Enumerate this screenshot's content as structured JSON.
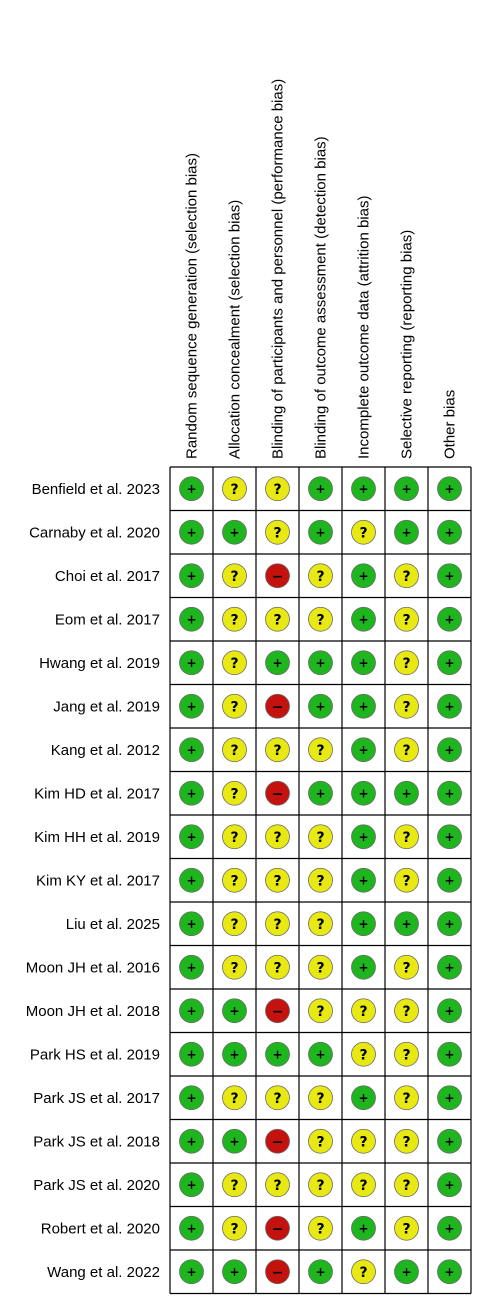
{
  "chart_data": {
    "type": "table",
    "columns": [
      "Random sequence generation (selection bias)",
      "Allocation concealment (selection bias)",
      "Blinding of participants and personnel (performance bias)",
      "Blinding of outcome assessment (detection bias)",
      "Incomplete outcome data (attrition bias)",
      "Selective reporting (reporting bias)",
      "Other bias"
    ],
    "rows": [
      "Benfield et al. 2023",
      "Carnaby et al. 2020",
      "Choi et al. 2017",
      "Eom et al. 2017",
      "Hwang et al. 2019",
      "Jang et al. 2019",
      "Kang et al. 2012",
      "Kim HD et al. 2017",
      "Kim HH et al. 2019",
      "Kim KY et al. 2017",
      "Liu et al. 2025",
      "Moon JH et al. 2016",
      "Moon JH et al. 2018",
      "Park HS et al. 2019",
      "Park JS et al. 2017",
      "Park JS et al. 2018",
      "Park JS et al. 2020",
      "Robert et al. 2020",
      "Wang et al. 2022"
    ],
    "judgements": [
      [
        "low",
        "unclear",
        "unclear",
        "low",
        "low",
        "low",
        "low"
      ],
      [
        "low",
        "low",
        "unclear",
        "low",
        "unclear",
        "low",
        "low"
      ],
      [
        "low",
        "unclear",
        "high",
        "unclear",
        "low",
        "unclear",
        "low"
      ],
      [
        "low",
        "unclear",
        "unclear",
        "unclear",
        "low",
        "unclear",
        "low"
      ],
      [
        "low",
        "unclear",
        "low",
        "low",
        "low",
        "unclear",
        "low"
      ],
      [
        "low",
        "unclear",
        "high",
        "low",
        "low",
        "unclear",
        "low"
      ],
      [
        "low",
        "unclear",
        "unclear",
        "unclear",
        "low",
        "unclear",
        "low"
      ],
      [
        "low",
        "unclear",
        "high",
        "low",
        "low",
        "low",
        "low"
      ],
      [
        "low",
        "unclear",
        "unclear",
        "unclear",
        "low",
        "unclear",
        "low"
      ],
      [
        "low",
        "unclear",
        "unclear",
        "unclear",
        "low",
        "unclear",
        "low"
      ],
      [
        "low",
        "unclear",
        "unclear",
        "unclear",
        "low",
        "low",
        "low"
      ],
      [
        "low",
        "unclear",
        "unclear",
        "unclear",
        "low",
        "unclear",
        "low"
      ],
      [
        "low",
        "low",
        "high",
        "unclear",
        "unclear",
        "unclear",
        "low"
      ],
      [
        "low",
        "low",
        "low",
        "low",
        "unclear",
        "unclear",
        "low"
      ],
      [
        "low",
        "unclear",
        "unclear",
        "unclear",
        "low",
        "unclear",
        "low"
      ],
      [
        "low",
        "low",
        "high",
        "unclear",
        "unclear",
        "unclear",
        "low"
      ],
      [
        "low",
        "unclear",
        "unclear",
        "unclear",
        "unclear",
        "unclear",
        "low"
      ],
      [
        "low",
        "unclear",
        "high",
        "unclear",
        "low",
        "unclear",
        "low"
      ],
      [
        "low",
        "low",
        "high",
        "low",
        "unclear",
        "low",
        "low"
      ]
    ],
    "legend": {
      "low": {
        "symbol": "+",
        "color": "#1fb51f"
      },
      "unclear": {
        "symbol": "?",
        "color": "#e8e812"
      },
      "high": {
        "symbol": "−",
        "color": "#c4130f"
      }
    }
  }
}
